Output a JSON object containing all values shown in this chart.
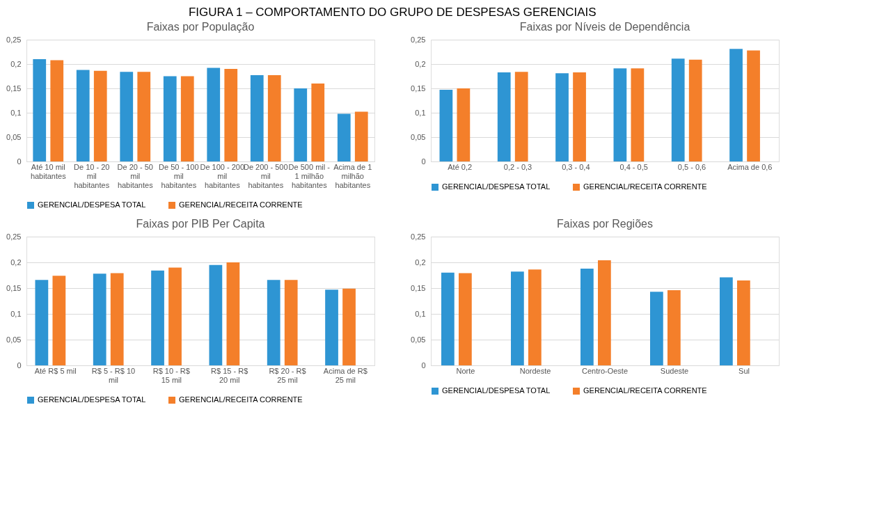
{
  "chart_data": [
    {
      "type": "bar",
      "title": "Faixas por População",
      "annotations": [
        "FIGURA 1 – COMPORTAMENTO DO GRUPO DE DESPESAS GERENCIAIS"
      ],
      "categories": [
        "Até 10 mil habitantes",
        "De 10 - 20 mil habitantes",
        "De 20 - 50 mil habitantes",
        "De 50 - 100 mil habitantes",
        "De 100 - 200 mil habitantes",
        "De 200 - 500 mil habitantes",
        "De 500 mil - 1 milhão habitantes",
        "Acima de 1 milhão habitantes"
      ],
      "series": [
        {
          "name": "GERENCIAL/DESPESA TOTAL",
          "color": "#2e95d3",
          "values": [
            0.21,
            0.188,
            0.184,
            0.175,
            0.192,
            0.177,
            0.15,
            0.098
          ]
        },
        {
          "name": "GERENCIAL/RECEITA CORRENTE",
          "color": "#f47f2a",
          "values": [
            0.208,
            0.186,
            0.184,
            0.175,
            0.19,
            0.177,
            0.16,
            0.102
          ]
        }
      ],
      "ylim": [
        0,
        0.25
      ],
      "yticks": [
        0,
        {
          "value": 0.05,
          "label": "0,05"
        },
        {
          "value": 0.1,
          "label": "0,1"
        },
        {
          "value": 0.15,
          "label": "0,15"
        },
        {
          "value": 0.2,
          "label": "0,2"
        },
        {
          "value": 0.25,
          "label": "0,25"
        }
      ],
      "grid": "y",
      "legend": "bottom"
    },
    {
      "type": "bar",
      "title": "Faixas por Níveis de Dependência",
      "categories": [
        "Até 0,2",
        "0,2 - 0,3",
        "0,3 - 0,4",
        "0,4 - 0,5",
        "0,5 - 0,6",
        "Acima de 0,6"
      ],
      "series": [
        {
          "name": "GERENCIAL/DESPESA TOTAL",
          "color": "#2e95d3",
          "values": [
            0.147,
            0.183,
            0.181,
            0.191,
            0.211,
            0.231
          ]
        },
        {
          "name": "GERENCIAL/RECEITA CORRENTE",
          "color": "#f47f2a",
          "values": [
            0.15,
            0.184,
            0.183,
            0.191,
            0.209,
            0.228
          ]
        }
      ],
      "ylim": [
        0,
        0.25
      ],
      "yticks": [
        0,
        {
          "value": 0.05,
          "label": "0,05"
        },
        {
          "value": 0.1,
          "label": "0,1"
        },
        {
          "value": 0.15,
          "label": "0,15"
        },
        {
          "value": 0.2,
          "label": "0,2"
        },
        {
          "value": 0.25,
          "label": "0,25"
        }
      ],
      "grid": "y",
      "legend": "bottom"
    },
    {
      "type": "bar",
      "title": "Faixas por PIB Per Capita",
      "categories": [
        "Até R$ 5 mil",
        "R$ 5 - R$ 10 mil",
        "R$ 10 - R$ 15 mil",
        "R$ 15 - R$ 20 mil",
        "R$ 20 - R$ 25 mil",
        "Acima de R$ 25 mil"
      ],
      "series": [
        {
          "name": "GERENCIAL/DESPESA TOTAL",
          "color": "#2e95d3",
          "values": [
            0.166,
            0.178,
            0.184,
            0.195,
            0.166,
            0.147
          ]
        },
        {
          "name": "GERENCIAL/RECEITA CORRENTE",
          "color": "#f47f2a",
          "values": [
            0.174,
            0.179,
            0.19,
            0.2,
            0.166,
            0.149
          ]
        }
      ],
      "ylim": [
        0,
        0.25
      ],
      "yticks": [
        0,
        {
          "value": 0.05,
          "label": "0,05"
        },
        {
          "value": 0.1,
          "label": "0,1"
        },
        {
          "value": 0.15,
          "label": "0,15"
        },
        {
          "value": 0.2,
          "label": "0,2"
        },
        {
          "value": 0.25,
          "label": "0,25"
        }
      ],
      "grid": "y",
      "legend": "bottom"
    },
    {
      "type": "bar",
      "title": "Faixas por Regiões",
      "categories": [
        "Norte",
        "Nordeste",
        "Centro-Oeste",
        "Sudeste",
        "Sul"
      ],
      "series": [
        {
          "name": "GERENCIAL/DESPESA TOTAL",
          "color": "#2e95d3",
          "values": [
            0.18,
            0.182,
            0.188,
            0.143,
            0.171
          ]
        },
        {
          "name": "GERENCIAL/RECEITA CORRENTE",
          "color": "#f47f2a",
          "values": [
            0.179,
            0.186,
            0.204,
            0.146,
            0.165
          ]
        }
      ],
      "ylim": [
        0,
        0.25
      ],
      "yticks": [
        0,
        {
          "value": 0.05,
          "label": "0,05"
        },
        {
          "value": 0.1,
          "label": "0,1"
        },
        {
          "value": 0.15,
          "label": "0,15"
        },
        {
          "value": 0.2,
          "label": "0,2"
        },
        {
          "value": 0.25,
          "label": "0,25"
        }
      ],
      "grid": "y",
      "legend": "bottom"
    }
  ]
}
